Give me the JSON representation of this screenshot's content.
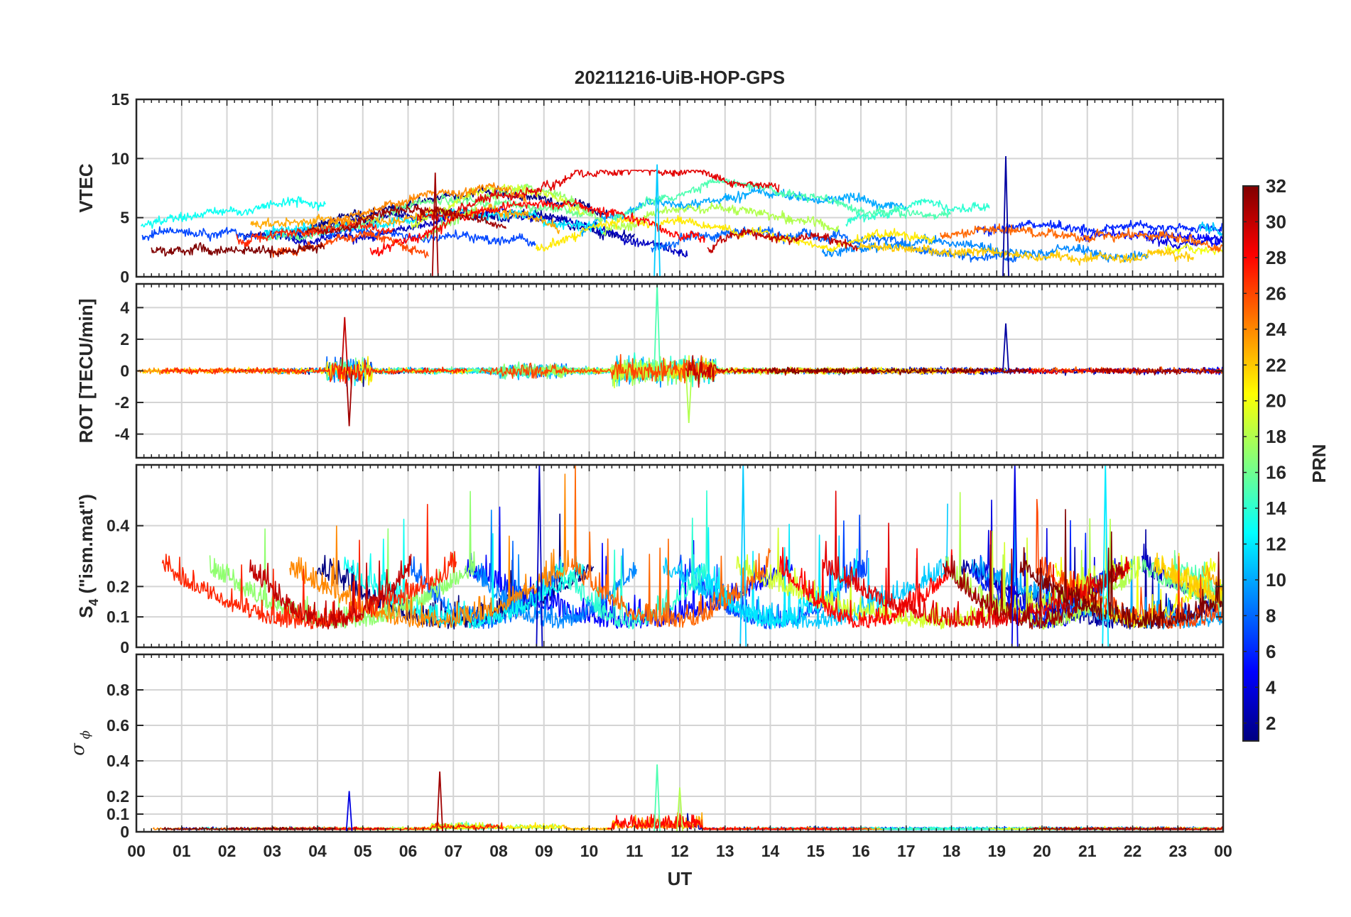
{
  "chart_data": {
    "type": "line",
    "title": "20211216-UiB-HOP-GPS",
    "xlabel": "UT",
    "x_tick_labels": [
      "00",
      "01",
      "02",
      "03",
      "04",
      "05",
      "06",
      "07",
      "08",
      "09",
      "10",
      "11",
      "12",
      "13",
      "14",
      "15",
      "16",
      "17",
      "18",
      "19",
      "20",
      "21",
      "22",
      "23",
      "00"
    ],
    "x_range_hours": [
      0,
      24
    ],
    "colorbar": {
      "label": "PRN",
      "range": [
        1,
        32
      ],
      "ticks": [
        2,
        4,
        6,
        8,
        10,
        12,
        14,
        16,
        18,
        20,
        22,
        24,
        26,
        28,
        30,
        32
      ],
      "colormap": "jet"
    },
    "panels": [
      {
        "name": "vtec",
        "ylabel": "VTEC",
        "ylim": [
          0,
          15
        ],
        "yticks": [
          0,
          5,
          10,
          15
        ],
        "ytick_labels": [
          "0",
          "5",
          "10",
          "15"
        ],
        "grid": true,
        "description": "Vertical TEC per satellite, mostly 1-9 TECU; daytime bulge ~6-9 near 06-07 UT and 11-15 UT; spike to ~10.2 near 19.2 UT"
      },
      {
        "name": "rot",
        "ylabel": "ROT [TECU/min]",
        "ylim": [
          -5.5,
          5.5
        ],
        "yticks": [
          -4,
          -2,
          0,
          2,
          4
        ],
        "ytick_labels": [
          "-4",
          "-2",
          "0",
          "2",
          "4"
        ],
        "grid": true,
        "description": "Rate of TEC, fluctuating around 0; large bursts to about +/-3.5 near 04.5-05 UT and up to ~5.5 near 11-12.5 UT"
      },
      {
        "name": "s4",
        "ylabel_main": "S",
        "ylabel_sub": "4",
        "ylabel_rest": " (\"ism.mat\")",
        "ylim": [
          0,
          0.6
        ],
        "yticks": [
          0,
          0.1,
          0.2,
          0.4
        ],
        "ytick_labels": [
          "0",
          "0.1",
          "0.2",
          "0.4"
        ],
        "grid": true,
        "description": "Amplitude scintillation index S4, baseline ~0.05-0.15 with many spikes to 0.4-0.6"
      },
      {
        "name": "sigma_phi",
        "ylabel_main": "σ",
        "ylabel_sub": "ϕ",
        "ylim": [
          0,
          1
        ],
        "yticks": [
          0,
          0.1,
          0.2,
          0.4,
          0.6,
          0.8
        ],
        "ytick_labels": [
          "0",
          "0.1",
          "0.2",
          "0.4",
          "0.6",
          "0.8"
        ],
        "grid": true,
        "description": "Phase scintillation index, baseline ~0.01-0.03; peaks ~0.23 at 04.7 UT, ~0.34 at 06.7 UT, ~0.38 at 11.5 UT, ~0.25 at 12 UT"
      }
    ],
    "notable_events": [
      {
        "panel": "vtec",
        "ut": 6.6,
        "value": 8.8,
        "prn": 31
      },
      {
        "panel": "vtec",
        "ut": 11.5,
        "value": 9.5,
        "prn": 11
      },
      {
        "panel": "vtec",
        "ut": 19.2,
        "value": 10.2,
        "prn": 2
      },
      {
        "panel": "rot",
        "ut": 4.6,
        "value": 3.4,
        "prn": 30
      },
      {
        "panel": "rot",
        "ut": 4.7,
        "value": -3.5,
        "prn": 31
      },
      {
        "panel": "rot",
        "ut": 11.5,
        "value": 5.5,
        "prn": 15
      },
      {
        "panel": "rot",
        "ut": 12.2,
        "value": -3.3,
        "prn": 18
      },
      {
        "panel": "rot",
        "ut": 19.2,
        "value": 3.0,
        "prn": 2
      },
      {
        "panel": "s4",
        "ut": 8.9,
        "value": 0.6,
        "prn": 3
      },
      {
        "panel": "s4",
        "ut": 13.4,
        "value": 0.6,
        "prn": 11
      },
      {
        "panel": "s4",
        "ut": 19.4,
        "value": 0.6,
        "prn": 4
      },
      {
        "panel": "s4",
        "ut": 21.4,
        "value": 0.6,
        "prn": 12
      },
      {
        "panel": "sigma_phi",
        "ut": 4.7,
        "value": 0.23,
        "prn": 4
      },
      {
        "panel": "sigma_phi",
        "ut": 6.7,
        "value": 0.34,
        "prn": 31
      },
      {
        "panel": "sigma_phi",
        "ut": 11.5,
        "value": 0.38,
        "prn": 15
      },
      {
        "panel": "sigma_phi",
        "ut": 12.0,
        "value": 0.25,
        "prn": 18
      }
    ]
  }
}
